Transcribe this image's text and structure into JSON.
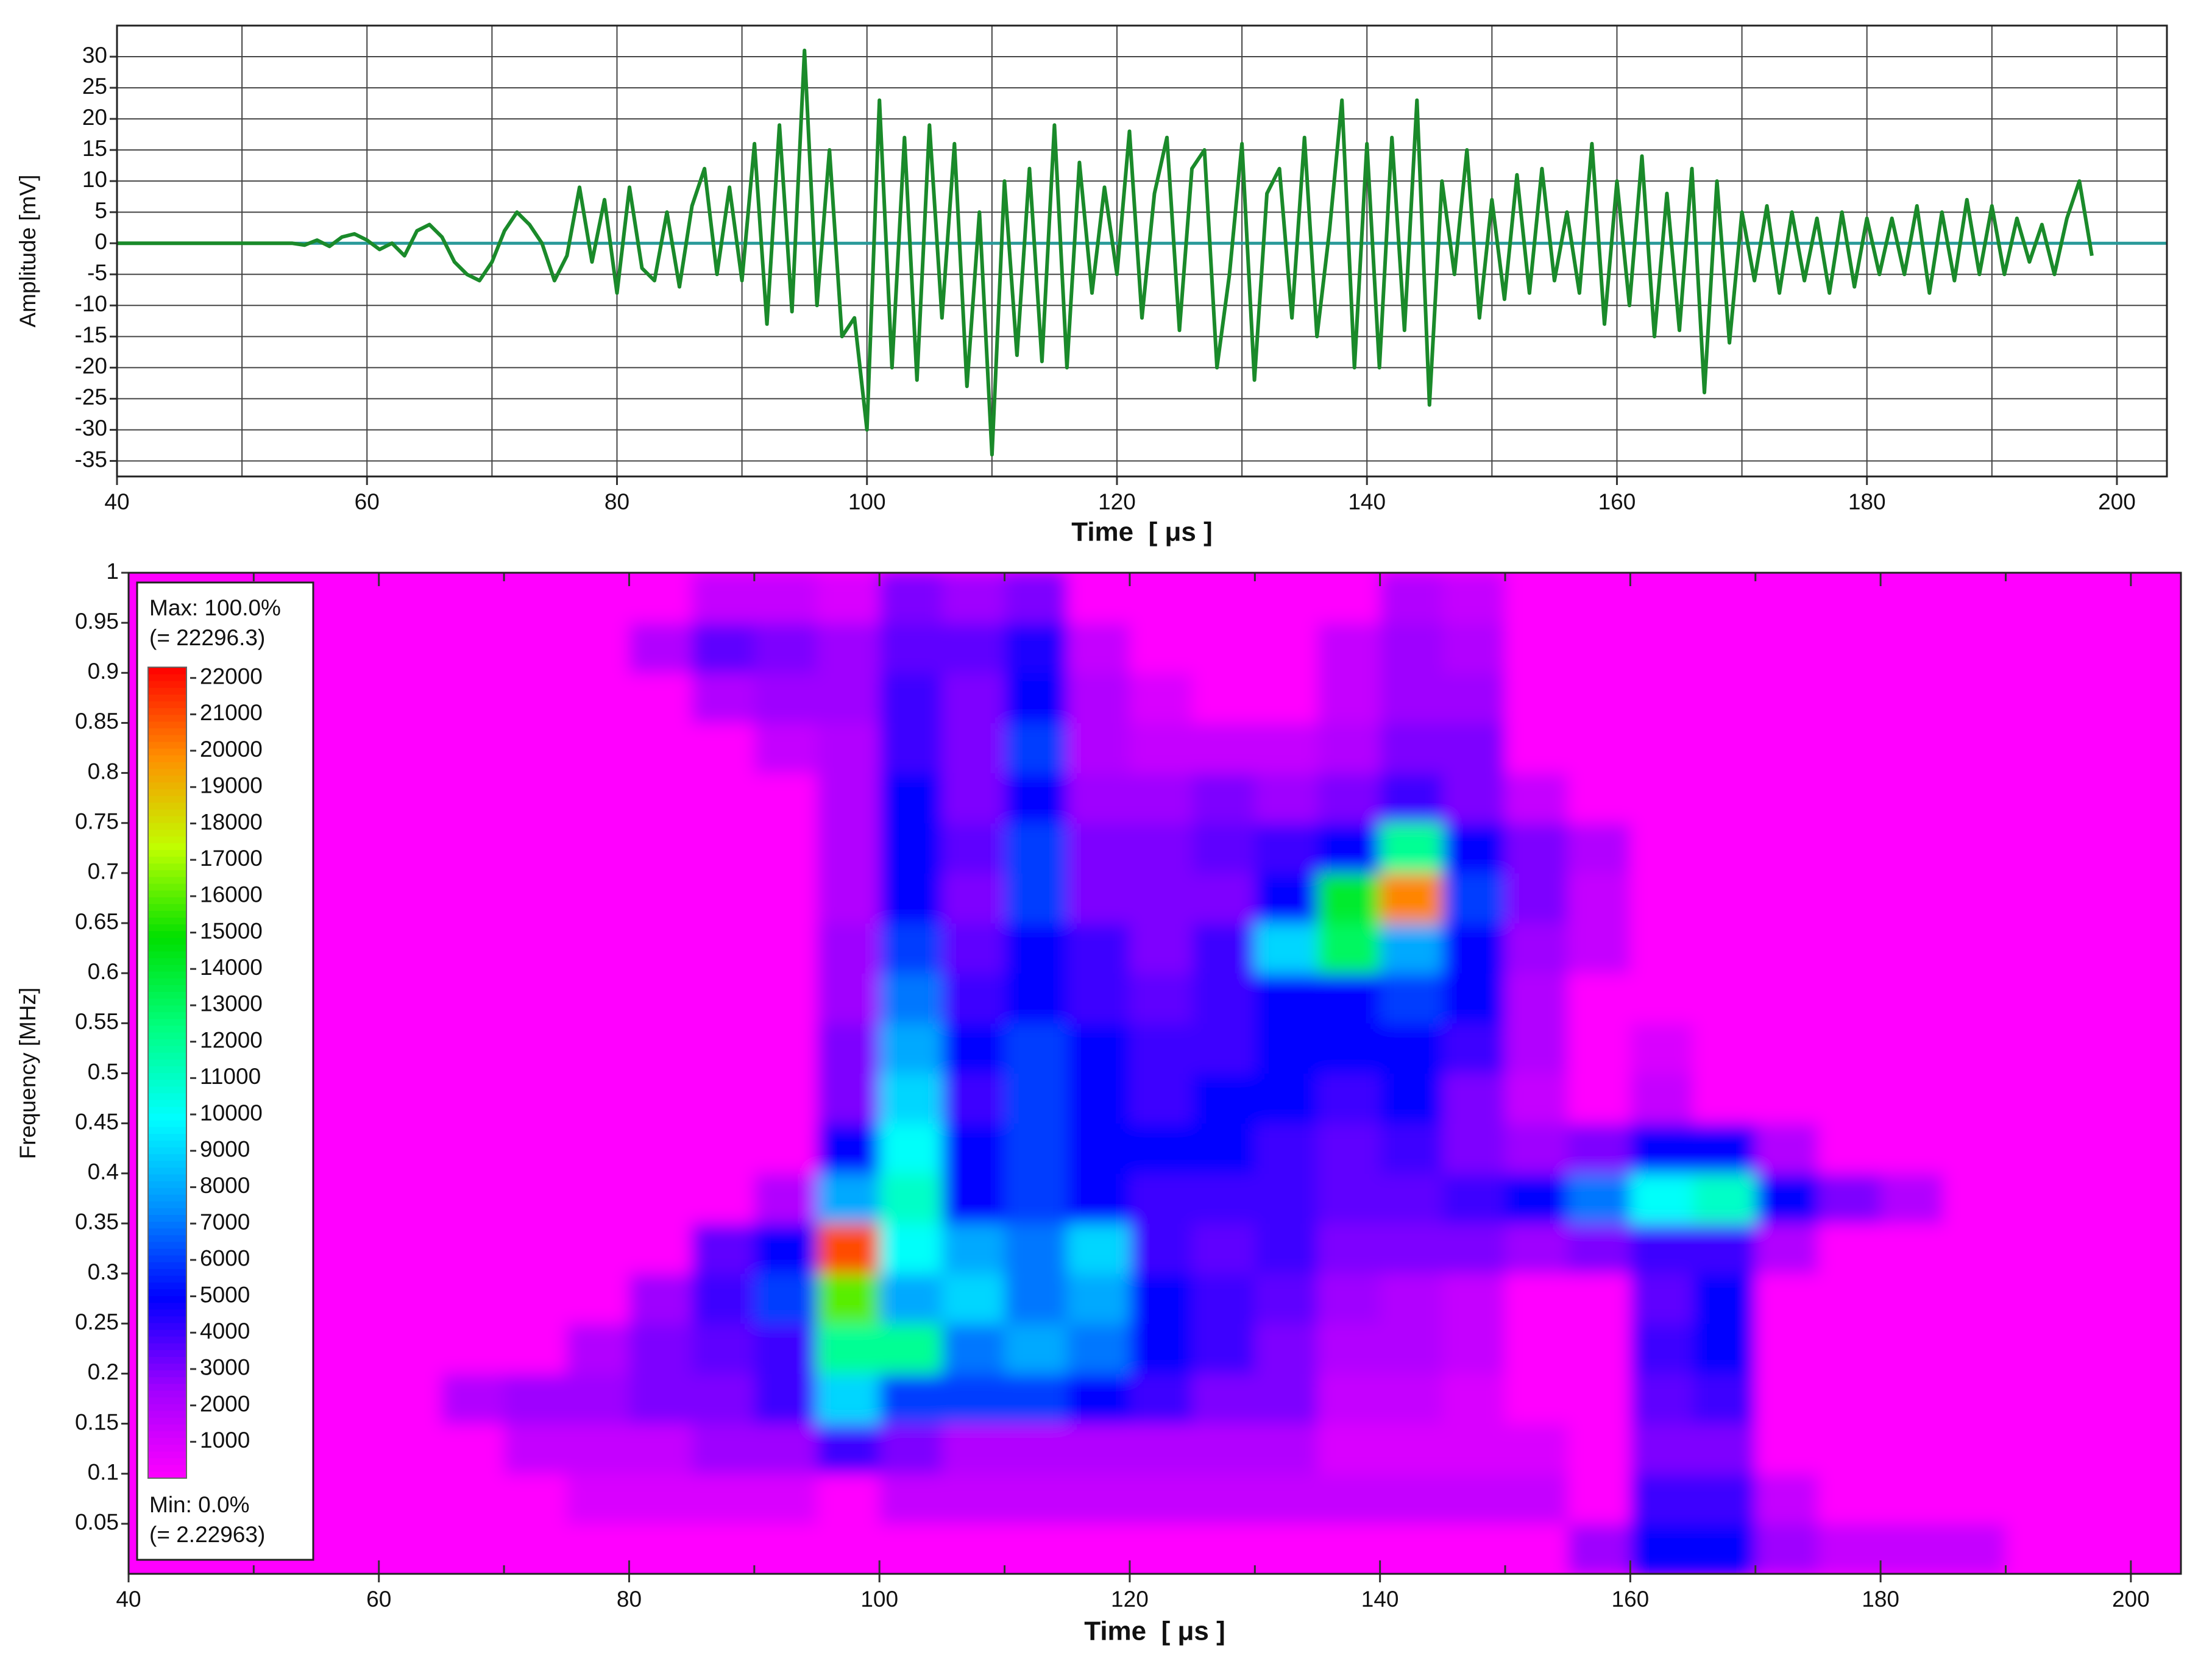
{
  "chart_data": [
    {
      "type": "line",
      "ylabel": "Amplitude [mV]",
      "xlabel": "Time  [ μs ]",
      "color": "#1a8a2a",
      "zero_line_color": "#2a9a9a",
      "grid": true,
      "xlim": [
        40,
        204
      ],
      "ylim": [
        -37.5,
        35
      ],
      "xticks": [
        40,
        60,
        80,
        100,
        120,
        140,
        160,
        180,
        200
      ],
      "x_minor_ticks": [
        50,
        70,
        90,
        110,
        130,
        150,
        170,
        190
      ],
      "yticks": [
        -35,
        -30,
        -25,
        -20,
        -15,
        -10,
        -5,
        0,
        5,
        10,
        15,
        20,
        25,
        30
      ],
      "x": [
        40,
        41,
        42,
        43,
        44,
        45,
        46,
        47,
        48,
        49,
        50,
        51,
        52,
        53,
        54,
        55,
        56,
        57,
        58,
        59,
        60,
        61,
        62,
        63,
        64,
        65,
        66,
        67,
        68,
        69,
        70,
        71,
        72,
        73,
        74,
        75,
        76,
        77,
        78,
        79,
        80,
        81,
        82,
        83,
        84,
        85,
        86,
        87,
        88,
        89,
        90,
        91,
        92,
        93,
        94,
        95,
        96,
        97,
        98,
        99,
        100,
        101,
        102,
        103,
        104,
        105,
        106,
        107,
        108,
        109,
        110,
        111,
        112,
        113,
        114,
        115,
        116,
        117,
        118,
        119,
        120,
        121,
        122,
        123,
        124,
        125,
        126,
        127,
        128,
        129,
        130,
        131,
        132,
        133,
        134,
        135,
        136,
        137,
        138,
        139,
        140,
        141,
        142,
        143,
        144,
        145,
        146,
        147,
        148,
        149,
        150,
        151,
        152,
        153,
        154,
        155,
        156,
        157,
        158,
        159,
        160,
        161,
        162,
        163,
        164,
        165,
        166,
        167,
        168,
        169,
        170,
        171,
        172,
        173,
        174,
        175,
        176,
        177,
        178,
        179,
        180,
        181,
        182,
        183,
        184,
        185,
        186,
        187,
        188,
        189,
        190,
        191,
        192,
        193,
        194,
        195,
        196,
        197,
        198
      ],
      "values": [
        0,
        0,
        0,
        0,
        0,
        0,
        0,
        0,
        0,
        0,
        0,
        0,
        0,
        0,
        0,
        -0.3,
        0.5,
        -0.5,
        1,
        1.5,
        0.5,
        -1,
        0,
        -2,
        2,
        3,
        1,
        -3,
        -5,
        -6,
        -3,
        2,
        5,
        3,
        0,
        -6,
        -2,
        9,
        -3,
        7,
        -8,
        9,
        -4,
        -6,
        5,
        -7,
        6,
        12,
        -5,
        9,
        -6,
        16,
        -13,
        19,
        -11,
        31,
        -10,
        15,
        -15,
        -12,
        -30,
        23,
        -20,
        17,
        -22,
        19,
        -12,
        16,
        -23,
        5,
        -34,
        10,
        -18,
        12,
        -19,
        19,
        -20,
        13,
        -8,
        9,
        -5,
        18,
        -12,
        8,
        17,
        -14,
        12,
        15,
        -20,
        -5,
        16,
        -22,
        8,
        12,
        -12,
        17,
        -15,
        2,
        23,
        -20,
        16,
        -20,
        17,
        -14,
        23,
        -26,
        10,
        -5,
        15,
        -12,
        7,
        -9,
        11,
        -8,
        12,
        -6,
        5,
        -8,
        16,
        -13,
        10,
        -10,
        14,
        -15,
        8,
        -14,
        12,
        -24,
        10,
        -16,
        5,
        -6,
        6,
        -8,
        5,
        -6,
        4,
        -8,
        5,
        -7,
        4,
        -5,
        4,
        -5,
        6,
        -8,
        5,
        -6,
        7,
        -5,
        6,
        -5,
        4,
        -3,
        3,
        -5,
        4,
        10,
        -2
      ]
    },
    {
      "type": "heatmap",
      "ylabel": "Frequency [MHz]",
      "xlabel": "Time  [ μs ]",
      "xlim": [
        40,
        204
      ],
      "ylim": [
        0,
        1
      ],
      "xticks": [
        40,
        60,
        80,
        100,
        120,
        140,
        160,
        180,
        200
      ],
      "x_minor_ticks": [
        50,
        70,
        90,
        110,
        130,
        150,
        170,
        190
      ],
      "yticks": [
        0.05,
        0.1,
        0.15,
        0.2,
        0.25,
        0.3,
        0.35,
        0.4,
        0.45,
        0.5,
        0.55,
        0.6,
        0.65,
        0.7,
        0.75,
        0.8,
        0.85,
        0.9,
        0.95,
        1
      ],
      "max_label": "Max: 100.0%",
      "max_value_label": "(= 22296.3)",
      "min_label": "Min: 0.0%",
      "min_value_label": "(= 2.22963)",
      "clim": [
        0,
        22296.3
      ],
      "colorbar_ticks": [
        1000,
        2000,
        3000,
        4000,
        5000,
        6000,
        7000,
        8000,
        9000,
        10000,
        11000,
        12000,
        13000,
        14000,
        15000,
        16000,
        17000,
        18000,
        19000,
        20000,
        21000,
        22000
      ],
      "colormap": [
        "#ff00ff",
        "#a000ff",
        "#0000ff",
        "#0090ff",
        "#00ffff",
        "#00ff80",
        "#00e000",
        "#c0ff00",
        "#ff9000",
        "#ff0000"
      ],
      "x": [
        40,
        45,
        50,
        55,
        60,
        65,
        70,
        75,
        80,
        85,
        90,
        95,
        100,
        105,
        110,
        115,
        120,
        125,
        130,
        135,
        140,
        145,
        150,
        155,
        160,
        165,
        170,
        175,
        180,
        185,
        190,
        195,
        200
      ],
      "y": [
        0,
        0.05,
        0.1,
        0.15,
        0.2,
        0.25,
        0.3,
        0.35,
        0.4,
        0.45,
        0.5,
        0.55,
        0.6,
        0.65,
        0.7,
        0.75,
        0.8,
        0.85,
        0.9,
        0.95
      ],
      "values": [
        [
          0,
          0,
          0,
          0,
          0,
          0,
          0,
          0,
          0,
          0,
          0,
          0,
          0,
          0,
          0,
          0,
          0,
          0,
          0,
          0,
          0,
          0,
          0,
          2500,
          5000,
          5000,
          2500,
          1500,
          1500,
          1500,
          0,
          0,
          0
        ],
        [
          0,
          0,
          0,
          0,
          0,
          0,
          0,
          1000,
          1000,
          1000,
          1000,
          0,
          1500,
          1500,
          1500,
          1500,
          1500,
          1500,
          1500,
          1500,
          1500,
          1500,
          1500,
          0,
          4000,
          4000,
          1500,
          0,
          0,
          0,
          0,
          0,
          0
        ],
        [
          0,
          0,
          0,
          0,
          0,
          0,
          1500,
          1500,
          1500,
          2500,
          2500,
          4000,
          3000,
          2000,
          2000,
          2000,
          2000,
          2000,
          2000,
          1000,
          1000,
          1000,
          1000,
          0,
          3000,
          3000,
          0,
          0,
          0,
          0,
          0,
          0,
          0
        ],
        [
          0,
          0,
          0,
          0,
          0,
          2000,
          2500,
          2500,
          3000,
          3000,
          4000,
          9000,
          6000,
          6000,
          6000,
          5000,
          4000,
          3000,
          3000,
          1500,
          1500,
          1000,
          0,
          0,
          3500,
          4000,
          0,
          0,
          0,
          0,
          0,
          0,
          0
        ],
        [
          0,
          0,
          0,
          0,
          0,
          0,
          0,
          2000,
          3000,
          3500,
          4000,
          12000,
          12000,
          7000,
          8000,
          7000,
          5000,
          4000,
          3000,
          2000,
          2000,
          1500,
          0,
          0,
          4000,
          5000,
          0,
          0,
          0,
          0,
          0,
          0,
          0
        ],
        [
          0,
          0,
          0,
          0,
          0,
          0,
          0,
          0,
          2500,
          4000,
          6000,
          16000,
          8000,
          9000,
          7000,
          8000,
          5000,
          4000,
          3500,
          2500,
          2000,
          1500,
          0,
          0,
          3500,
          5000,
          0,
          0,
          0,
          0,
          0,
          0,
          0
        ],
        [
          0,
          0,
          0,
          0,
          0,
          0,
          0,
          0,
          0,
          3500,
          5000,
          21000,
          10000,
          8000,
          7000,
          9000,
          4000,
          3500,
          4000,
          3000,
          3000,
          3000,
          2500,
          3000,
          4000,
          4000,
          2000,
          0,
          0,
          0,
          0,
          0,
          0
        ],
        [
          0,
          0,
          0,
          0,
          0,
          0,
          0,
          0,
          0,
          0,
          2000,
          8000,
          11000,
          5000,
          6000,
          5000,
          4000,
          4000,
          4000,
          3500,
          3500,
          4000,
          5000,
          7000,
          10000,
          11000,
          5000,
          3000,
          2000,
          0,
          0,
          0,
          0
        ],
        [
          0,
          0,
          0,
          0,
          0,
          0,
          0,
          0,
          0,
          0,
          0,
          5000,
          10000,
          5000,
          6000,
          5000,
          5000,
          5000,
          4000,
          3500,
          4000,
          3000,
          2500,
          3000,
          5000,
          5000,
          2000,
          0,
          0,
          0,
          0,
          0,
          0
        ],
        [
          0,
          0,
          0,
          0,
          0,
          0,
          0,
          0,
          0,
          0,
          0,
          3000,
          9000,
          4000,
          6000,
          5000,
          4000,
          5000,
          5000,
          4000,
          5000,
          3000,
          1500,
          0,
          1500,
          0,
          0,
          0,
          0,
          0,
          0,
          0,
          0
        ],
        [
          0,
          0,
          0,
          0,
          0,
          0,
          0,
          0,
          0,
          0,
          0,
          3000,
          8000,
          5000,
          6000,
          5000,
          4000,
          4000,
          5000,
          5000,
          5000,
          4000,
          2000,
          0,
          1000,
          0,
          0,
          0,
          0,
          0,
          0,
          0,
          0
        ],
        [
          0,
          0,
          0,
          0,
          0,
          0,
          0,
          0,
          0,
          0,
          0,
          2500,
          7000,
          4000,
          5000,
          4000,
          3500,
          4000,
          5000,
          5000,
          6000,
          5000,
          2000,
          0,
          0,
          0,
          0,
          0,
          0,
          0,
          0,
          0,
          0
        ],
        [
          0,
          0,
          0,
          0,
          0,
          0,
          0,
          0,
          0,
          0,
          0,
          2500,
          6000,
          3500,
          5000,
          4000,
          3000,
          4000,
          9000,
          13000,
          8000,
          5000,
          2500,
          1500,
          0,
          0,
          0,
          0,
          0,
          0,
          0,
          0,
          0
        ],
        [
          0,
          0,
          0,
          0,
          0,
          0,
          0,
          0,
          0,
          0,
          0,
          2000,
          5000,
          3000,
          6000,
          3000,
          3000,
          3000,
          5000,
          14000,
          20000,
          6000,
          3000,
          1500,
          0,
          0,
          0,
          0,
          0,
          0,
          0,
          0,
          0
        ],
        [
          0,
          0,
          0,
          0,
          0,
          0,
          0,
          0,
          0,
          0,
          0,
          2000,
          5000,
          3500,
          6000,
          3000,
          3000,
          3500,
          4000,
          5000,
          12000,
          5000,
          3000,
          2000,
          0,
          0,
          0,
          0,
          0,
          0,
          0,
          0,
          0
        ],
        [
          0,
          0,
          0,
          0,
          0,
          0,
          0,
          0,
          0,
          0,
          0,
          2000,
          5000,
          3000,
          5000,
          2500,
          2500,
          3000,
          2500,
          3000,
          4000,
          3000,
          1500,
          0,
          0,
          0,
          0,
          0,
          0,
          0,
          0,
          0,
          0
        ],
        [
          0,
          0,
          0,
          0,
          0,
          0,
          0,
          0,
          0,
          0,
          1500,
          2000,
          4000,
          3000,
          6000,
          2000,
          1500,
          1500,
          1500,
          2000,
          3000,
          3000,
          0,
          0,
          0,
          0,
          0,
          0,
          0,
          0,
          0,
          0,
          0
        ],
        [
          0,
          0,
          0,
          0,
          0,
          0,
          0,
          0,
          0,
          2000,
          2500,
          2500,
          4000,
          3000,
          5000,
          2000,
          1000,
          0,
          0,
          1500,
          2500,
          2500,
          0,
          0,
          0,
          0,
          0,
          0,
          0,
          0,
          0,
          0,
          0
        ],
        [
          0,
          0,
          0,
          0,
          0,
          0,
          0,
          0,
          2000,
          3500,
          3000,
          2500,
          3500,
          3500,
          4500,
          1500,
          0,
          0,
          0,
          1500,
          2500,
          2000,
          0,
          0,
          0,
          0,
          0,
          0,
          0,
          0,
          0,
          0,
          0
        ],
        [
          0,
          0,
          0,
          0,
          0,
          0,
          0,
          0,
          0,
          1500,
          1500,
          1000,
          3000,
          2500,
          3000,
          0,
          0,
          0,
          0,
          0,
          2000,
          1500,
          0,
          0,
          0,
          0,
          0,
          0,
          0,
          0,
          0,
          0,
          0
        ]
      ]
    }
  ]
}
